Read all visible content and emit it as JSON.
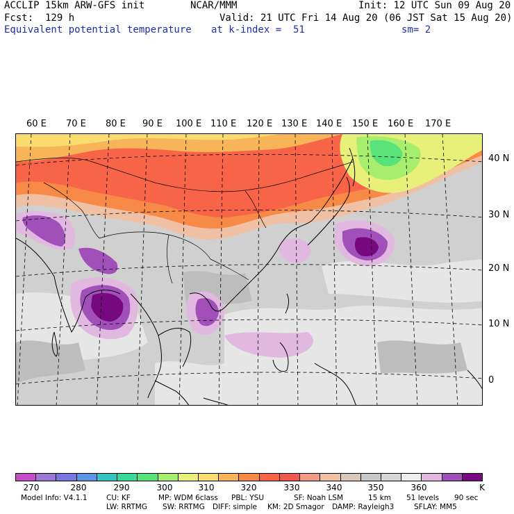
{
  "header": {
    "model_line": "ACCLIP 15km ARW-GFS init",
    "org": "NCAR/MMM",
    "init": "Init: 12 UTC Sun 09 Aug 20",
    "fcst": "Fcst:  129 h",
    "valid": "Valid: 21 UTC Fri 14 Aug 20 (06 JST Sat 15 Aug 20)",
    "field": "Equivalent potential temperature",
    "level": "at k-index =  51",
    "smooth": "sm= 2"
  },
  "map": {
    "lon_labels": [
      "60 E",
      "70 E",
      "80 E",
      "90 E",
      "100 E",
      "110 E",
      "120 E",
      "130 E",
      "140 E",
      "150 E",
      "160 E",
      "170 E"
    ],
    "lat_labels": [
      "40 N",
      "30 N",
      "20 N",
      "10 N",
      "0"
    ]
  },
  "colorbar": {
    "unit": "K",
    "colors": [
      "#c84ec8",
      "#9a7ad2",
      "#7a78e0",
      "#5e96e6",
      "#35c4c0",
      "#3ad89a",
      "#5ae27a",
      "#a8ee6e",
      "#e8f07a",
      "#fadc70",
      "#f8b458",
      "#f88a48",
      "#f86448",
      "#f05a4e",
      "#f09c86",
      "#f0c0a4",
      "#d8c8bc",
      "#c8c8c8",
      "#d6d6d6",
      "#eeeeee",
      "#e0b8e0",
      "#a050b8",
      "#760880"
    ],
    "tick_labels": [
      "270",
      "280",
      "290",
      "300",
      "310",
      "320",
      "330",
      "340",
      "350",
      "360"
    ]
  },
  "footer": {
    "line1": [
      {
        "k": "model-info",
        "v": "Model Info: V4.1.1"
      },
      {
        "k": "cu",
        "v": "CU: KF"
      },
      {
        "k": "mp",
        "v": "MP: WDM 6class"
      },
      {
        "k": "pbl",
        "v": "PBL: YSU"
      },
      {
        "k": "sf",
        "v": "SF: Noah LSM"
      },
      {
        "k": "res",
        "v": "15 km"
      },
      {
        "k": "levels",
        "v": "51 levels"
      },
      {
        "k": "dt",
        "v": "90 sec"
      }
    ],
    "line2": [
      {
        "k": "lw",
        "v": "LW: RRTMG"
      },
      {
        "k": "sw",
        "v": "SW: RRTMG"
      },
      {
        "k": "diff",
        "v": "DIFF: simple"
      },
      {
        "k": "km",
        "v": "KM: 2D Smagor"
      },
      {
        "k": "damp",
        "v": "DAMP: Rayleigh3"
      },
      {
        "k": "sflay",
        "v": "SFLAY: MM5"
      }
    ]
  }
}
